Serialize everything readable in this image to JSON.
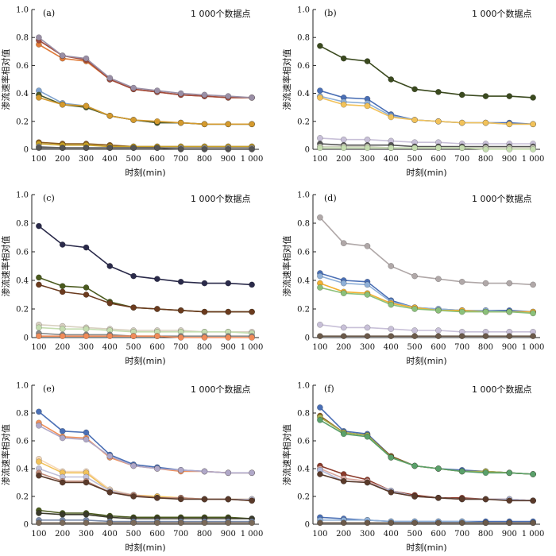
{
  "chart_data": [
    {
      "panel": "(a)",
      "type": "line",
      "annotation": "1 000个数据点",
      "xlabel": "时刻(min)",
      "ylabel": "渗流速率相对值",
      "x": [
        100,
        200,
        300,
        400,
        500,
        600,
        700,
        800,
        900,
        1000
      ],
      "x_ticks": [
        "100",
        "200",
        "300",
        "400",
        "500",
        "600",
        "700",
        "800",
        "900",
        "1 000"
      ],
      "y_ticks": [
        "0",
        "0.2",
        "0.4",
        "0.6",
        "0.8",
        "1.0"
      ],
      "ylim": [
        0,
        1.0
      ],
      "xlim": [
        70,
        1030
      ],
      "series": [
        {
          "color": "#e07b39",
          "values": [
            0.75,
            0.65,
            0.63,
            0.5,
            0.43,
            0.41,
            0.39,
            0.38,
            0.37,
            0.37
          ]
        },
        {
          "color": "#a14a3c",
          "values": [
            0.78,
            0.67,
            0.64,
            0.5,
            0.43,
            0.41,
            0.39,
            0.38,
            0.37,
            0.37
          ]
        },
        {
          "color": "#9a8fa6",
          "values": [
            0.8,
            0.67,
            0.65,
            0.51,
            0.44,
            0.42,
            0.4,
            0.39,
            0.38,
            0.37
          ]
        },
        {
          "color": "#7fa3cf",
          "values": [
            0.42,
            0.33,
            0.31,
            0.24,
            0.21,
            0.19,
            0.19,
            0.18,
            0.18,
            0.18
          ]
        },
        {
          "color": "#4d5a2a",
          "values": [
            0.39,
            0.32,
            0.3,
            0.24,
            0.21,
            0.19,
            0.19,
            0.18,
            0.18,
            0.18
          ]
        },
        {
          "color": "#d49a2e",
          "values": [
            0.37,
            0.32,
            0.31,
            0.24,
            0.21,
            0.2,
            0.19,
            0.18,
            0.18,
            0.18
          ]
        },
        {
          "color": "#8b5a1a",
          "values": [
            0.05,
            0.04,
            0.04,
            0.03,
            0.02,
            0.02,
            0.02,
            0.02,
            0.02,
            0.02
          ]
        },
        {
          "color": "#c9a227",
          "values": [
            0.04,
            0.03,
            0.03,
            0.02,
            0.02,
            0.02,
            0.02,
            0.02,
            0.02,
            0.02
          ]
        },
        {
          "color": "#888888",
          "values": [
            0.02,
            0.01,
            0.01,
            0.01,
            0.01,
            0.01,
            0.01,
            0.01,
            0.01,
            0.01
          ]
        },
        {
          "color": "#555555",
          "values": [
            0.01,
            0.01,
            0.01,
            0.01,
            0.01,
            0.01,
            0.0,
            0.0,
            0.0,
            0.0
          ]
        }
      ]
    },
    {
      "panel": "(b)",
      "type": "line",
      "annotation": "1 000个数据点",
      "xlabel": "时刻(min)",
      "ylabel": "渗流速率相对值",
      "x": [
        100,
        200,
        300,
        400,
        500,
        600,
        700,
        800,
        900,
        1000
      ],
      "x_ticks": [
        "100",
        "200",
        "300",
        "400",
        "500",
        "600",
        "700",
        "800",
        "900",
        "1 000"
      ],
      "y_ticks": [
        "0",
        "0.2",
        "0.4",
        "0.6",
        "0.8",
        "1.0"
      ],
      "ylim": [
        0,
        1.0
      ],
      "xlim": [
        70,
        1030
      ],
      "series": [
        {
          "color": "#3b4a1f",
          "values": [
            0.74,
            0.65,
            0.63,
            0.5,
            0.43,
            0.41,
            0.39,
            0.38,
            0.38,
            0.37
          ]
        },
        {
          "color": "#4a6fb5",
          "values": [
            0.42,
            0.37,
            0.36,
            0.25,
            0.21,
            0.2,
            0.19,
            0.19,
            0.19,
            0.18
          ]
        },
        {
          "color": "#8fb0d8",
          "values": [
            0.38,
            0.34,
            0.33,
            0.24,
            0.21,
            0.2,
            0.19,
            0.19,
            0.18,
            0.18
          ]
        },
        {
          "color": "#f2c25a",
          "values": [
            0.37,
            0.32,
            0.31,
            0.23,
            0.21,
            0.2,
            0.19,
            0.19,
            0.18,
            0.18
          ]
        },
        {
          "color": "#c8c0d8",
          "values": [
            0.08,
            0.07,
            0.07,
            0.06,
            0.05,
            0.05,
            0.04,
            0.04,
            0.04,
            0.04
          ]
        },
        {
          "color": "#555555",
          "values": [
            0.04,
            0.03,
            0.03,
            0.03,
            0.02,
            0.02,
            0.02,
            0.02,
            0.02,
            0.02
          ]
        },
        {
          "color": "#d0d0c0",
          "values": [
            0.02,
            0.02,
            0.02,
            0.01,
            0.01,
            0.01,
            0.01,
            0.01,
            0.01,
            0.01
          ]
        },
        {
          "color": "#c5ddb0",
          "values": [
            0.01,
            0.01,
            0.01,
            0.01,
            0.01,
            0.01,
            0.01,
            0.0,
            0.0,
            0.0
          ]
        }
      ]
    },
    {
      "panel": "(c)",
      "type": "line",
      "annotation": "1 000个数据点",
      "xlabel": "时刻(min)",
      "ylabel": "渗流速率相对值",
      "x": [
        100,
        200,
        300,
        400,
        500,
        600,
        700,
        800,
        900,
        1000
      ],
      "x_ticks": [
        "100",
        "200",
        "300",
        "400",
        "500",
        "600",
        "700",
        "800",
        "900",
        "1 000"
      ],
      "y_ticks": [
        "0",
        "0.2",
        "0.4",
        "0.6",
        "0.8",
        "1.0"
      ],
      "ylim": [
        0,
        1.0
      ],
      "xlim": [
        70,
        1030
      ],
      "series": [
        {
          "color": "#2a2a4a",
          "values": [
            0.78,
            0.65,
            0.63,
            0.5,
            0.43,
            0.41,
            0.39,
            0.38,
            0.38,
            0.37
          ]
        },
        {
          "color": "#4a5a1e",
          "values": [
            0.42,
            0.36,
            0.35,
            0.25,
            0.21,
            0.2,
            0.19,
            0.18,
            0.18,
            0.18
          ]
        },
        {
          "color": "#6b3b1e",
          "values": [
            0.37,
            0.32,
            0.3,
            0.24,
            0.21,
            0.2,
            0.19,
            0.18,
            0.18,
            0.18
          ]
        },
        {
          "color": "#d8d0c0",
          "values": [
            0.09,
            0.08,
            0.07,
            0.06,
            0.05,
            0.05,
            0.05,
            0.04,
            0.04,
            0.04
          ]
        },
        {
          "color": "#c5ddb0",
          "values": [
            0.07,
            0.06,
            0.06,
            0.05,
            0.04,
            0.04,
            0.04,
            0.04,
            0.04,
            0.03
          ]
        },
        {
          "color": "#8a8a8a",
          "values": [
            0.03,
            0.02,
            0.02,
            0.02,
            0.01,
            0.01,
            0.01,
            0.01,
            0.01,
            0.01
          ]
        },
        {
          "color": "#f08c5a",
          "values": [
            0.01,
            0.01,
            0.01,
            0.01,
            0.01,
            0.01,
            0.0,
            0.0,
            0.0,
            0.0
          ]
        }
      ]
    },
    {
      "panel": "(d)",
      "type": "line",
      "annotation": "1 000个数据点",
      "xlabel": "时刻(min)",
      "ylabel": "渗流速率相对值",
      "x": [
        100,
        200,
        300,
        400,
        500,
        600,
        700,
        800,
        900,
        1000
      ],
      "x_ticks": [
        "100",
        "200",
        "300",
        "400",
        "500",
        "600",
        "700",
        "800",
        "900",
        "1 000"
      ],
      "y_ticks": [
        "0",
        "0.2",
        "0.4",
        "0.6",
        "0.8",
        "1.0"
      ],
      "ylim": [
        0,
        1.0
      ],
      "xlim": [
        70,
        1030
      ],
      "series": [
        {
          "color": "#b0a8a8",
          "values": [
            0.84,
            0.66,
            0.64,
            0.5,
            0.43,
            0.41,
            0.39,
            0.38,
            0.38,
            0.37
          ]
        },
        {
          "color": "#4a6fb5",
          "values": [
            0.45,
            0.4,
            0.39,
            0.26,
            0.21,
            0.2,
            0.19,
            0.19,
            0.19,
            0.18
          ]
        },
        {
          "color": "#8fb0d8",
          "values": [
            0.43,
            0.38,
            0.37,
            0.25,
            0.21,
            0.2,
            0.19,
            0.19,
            0.18,
            0.18
          ]
        },
        {
          "color": "#f2b030",
          "values": [
            0.38,
            0.32,
            0.31,
            0.24,
            0.21,
            0.19,
            0.19,
            0.18,
            0.18,
            0.18
          ]
        },
        {
          "color": "#8bc07a",
          "values": [
            0.35,
            0.31,
            0.3,
            0.23,
            0.2,
            0.19,
            0.18,
            0.18,
            0.18,
            0.17
          ]
        },
        {
          "color": "#c8c0d8",
          "values": [
            0.09,
            0.07,
            0.07,
            0.06,
            0.05,
            0.05,
            0.04,
            0.04,
            0.04,
            0.04
          ]
        },
        {
          "color": "#6b5a4a",
          "values": [
            0.01,
            0.01,
            0.01,
            0.01,
            0.01,
            0.01,
            0.01,
            0.01,
            0.01,
            0.01
          ]
        }
      ]
    },
    {
      "panel": "(e)",
      "type": "line",
      "annotation": "1 000个数据点",
      "xlabel": "时刻(min)",
      "ylabel": "渗流速率相对值",
      "x": [
        100,
        200,
        300,
        400,
        500,
        600,
        700,
        800,
        900,
        1000
      ],
      "x_ticks": [
        "100",
        "200",
        "300",
        "400",
        "500",
        "600",
        "700",
        "800",
        "900",
        "1 000"
      ],
      "y_ticks": [
        "0",
        "0.2",
        "0.4",
        "0.6",
        "0.8",
        "1.0"
      ],
      "ylim": [
        0,
        1.0
      ],
      "xlim": [
        70,
        1030
      ],
      "series": [
        {
          "color": "#4a6fb5",
          "values": [
            0.81,
            0.67,
            0.66,
            0.5,
            0.43,
            0.41,
            0.39,
            0.38,
            0.37,
            0.37
          ]
        },
        {
          "color": "#f0905a",
          "values": [
            0.73,
            0.63,
            0.62,
            0.48,
            0.42,
            0.4,
            0.38,
            0.38,
            0.37,
            0.37
          ]
        },
        {
          "color": "#b0a8c8",
          "values": [
            0.71,
            0.62,
            0.61,
            0.49,
            0.42,
            0.4,
            0.39,
            0.38,
            0.37,
            0.37
          ]
        },
        {
          "color": "#f5d8b8",
          "values": [
            0.47,
            0.38,
            0.38,
            0.25,
            0.21,
            0.2,
            0.19,
            0.18,
            0.18,
            0.18
          ]
        },
        {
          "color": "#f2c25a",
          "values": [
            0.45,
            0.37,
            0.37,
            0.24,
            0.21,
            0.2,
            0.19,
            0.18,
            0.18,
            0.18
          ]
        },
        {
          "color": "#c0c0d8",
          "values": [
            0.4,
            0.34,
            0.34,
            0.24,
            0.21,
            0.19,
            0.19,
            0.18,
            0.18,
            0.18
          ]
        },
        {
          "color": "#c08a78",
          "values": [
            0.37,
            0.31,
            0.31,
            0.23,
            0.21,
            0.19,
            0.19,
            0.18,
            0.18,
            0.17
          ]
        },
        {
          "color": "#5a3a2a",
          "values": [
            0.35,
            0.3,
            0.3,
            0.23,
            0.2,
            0.19,
            0.18,
            0.18,
            0.18,
            0.17
          ]
        },
        {
          "color": "#4a5a1e",
          "values": [
            0.1,
            0.08,
            0.08,
            0.06,
            0.05,
            0.05,
            0.05,
            0.05,
            0.05,
            0.04
          ]
        },
        {
          "color": "#3a3a2a",
          "values": [
            0.08,
            0.07,
            0.07,
            0.05,
            0.04,
            0.04,
            0.04,
            0.04,
            0.04,
            0.04
          ]
        },
        {
          "color": "#7a8aa8",
          "values": [
            0.03,
            0.03,
            0.03,
            0.02,
            0.02,
            0.02,
            0.02,
            0.02,
            0.02,
            0.02
          ]
        },
        {
          "color": "#7a6a5a",
          "values": [
            0.01,
            0.01,
            0.01,
            0.01,
            0.01,
            0.01,
            0.01,
            0.01,
            0.01,
            0.01
          ]
        }
      ]
    },
    {
      "panel": "(f)",
      "type": "line",
      "annotation": "1 000个数据点",
      "xlabel": "时刻(min)",
      "ylabel": "渗流速率相对值",
      "x": [
        100,
        200,
        300,
        400,
        500,
        600,
        700,
        800,
        900,
        1000
      ],
      "x_ticks": [
        "100",
        "200",
        "300",
        "400",
        "500",
        "600",
        "700",
        "800",
        "900",
        "1 000"
      ],
      "y_ticks": [
        "0",
        "0.2",
        "0.4",
        "0.6",
        "0.8",
        "1.0"
      ],
      "ylim": [
        0,
        1.0
      ],
      "xlim": [
        70,
        1030
      ],
      "series": [
        {
          "color": "#4a6fb5",
          "values": [
            0.84,
            0.67,
            0.65,
            0.49,
            0.42,
            0.4,
            0.39,
            0.38,
            0.37,
            0.36
          ]
        },
        {
          "color": "#8b5a1a",
          "values": [
            0.78,
            0.66,
            0.64,
            0.49,
            0.42,
            0.4,
            0.38,
            0.38,
            0.37,
            0.36
          ]
        },
        {
          "color": "#a8b050",
          "values": [
            0.77,
            0.66,
            0.64,
            0.48,
            0.42,
            0.4,
            0.38,
            0.38,
            0.37,
            0.36
          ]
        },
        {
          "color": "#5aa06a",
          "values": [
            0.75,
            0.65,
            0.63,
            0.48,
            0.42,
            0.4,
            0.38,
            0.37,
            0.37,
            0.36
          ]
        },
        {
          "color": "#8b3a2a",
          "values": [
            0.42,
            0.36,
            0.32,
            0.24,
            0.21,
            0.19,
            0.19,
            0.18,
            0.18,
            0.17
          ]
        },
        {
          "color": "#d8a8a0",
          "values": [
            0.4,
            0.33,
            0.31,
            0.24,
            0.2,
            0.19,
            0.18,
            0.18,
            0.18,
            0.17
          ]
        },
        {
          "color": "#b0b8d8",
          "values": [
            0.39,
            0.31,
            0.3,
            0.24,
            0.2,
            0.19,
            0.18,
            0.18,
            0.18,
            0.17
          ]
        },
        {
          "color": "#5a3a2a",
          "values": [
            0.36,
            0.31,
            0.3,
            0.23,
            0.2,
            0.19,
            0.18,
            0.18,
            0.17,
            0.17
          ]
        },
        {
          "color": "#4a6fb5",
          "values": [
            0.05,
            0.04,
            0.03,
            0.02,
            0.02,
            0.02,
            0.02,
            0.02,
            0.02,
            0.02
          ]
        },
        {
          "color": "#8fb0d8",
          "values": [
            0.03,
            0.03,
            0.03,
            0.02,
            0.02,
            0.02,
            0.02,
            0.01,
            0.01,
            0.01
          ]
        },
        {
          "color": "#6b5a4a",
          "values": [
            0.01,
            0.01,
            0.01,
            0.01,
            0.01,
            0.01,
            0.01,
            0.01,
            0.01,
            0.01
          ]
        }
      ]
    }
  ]
}
